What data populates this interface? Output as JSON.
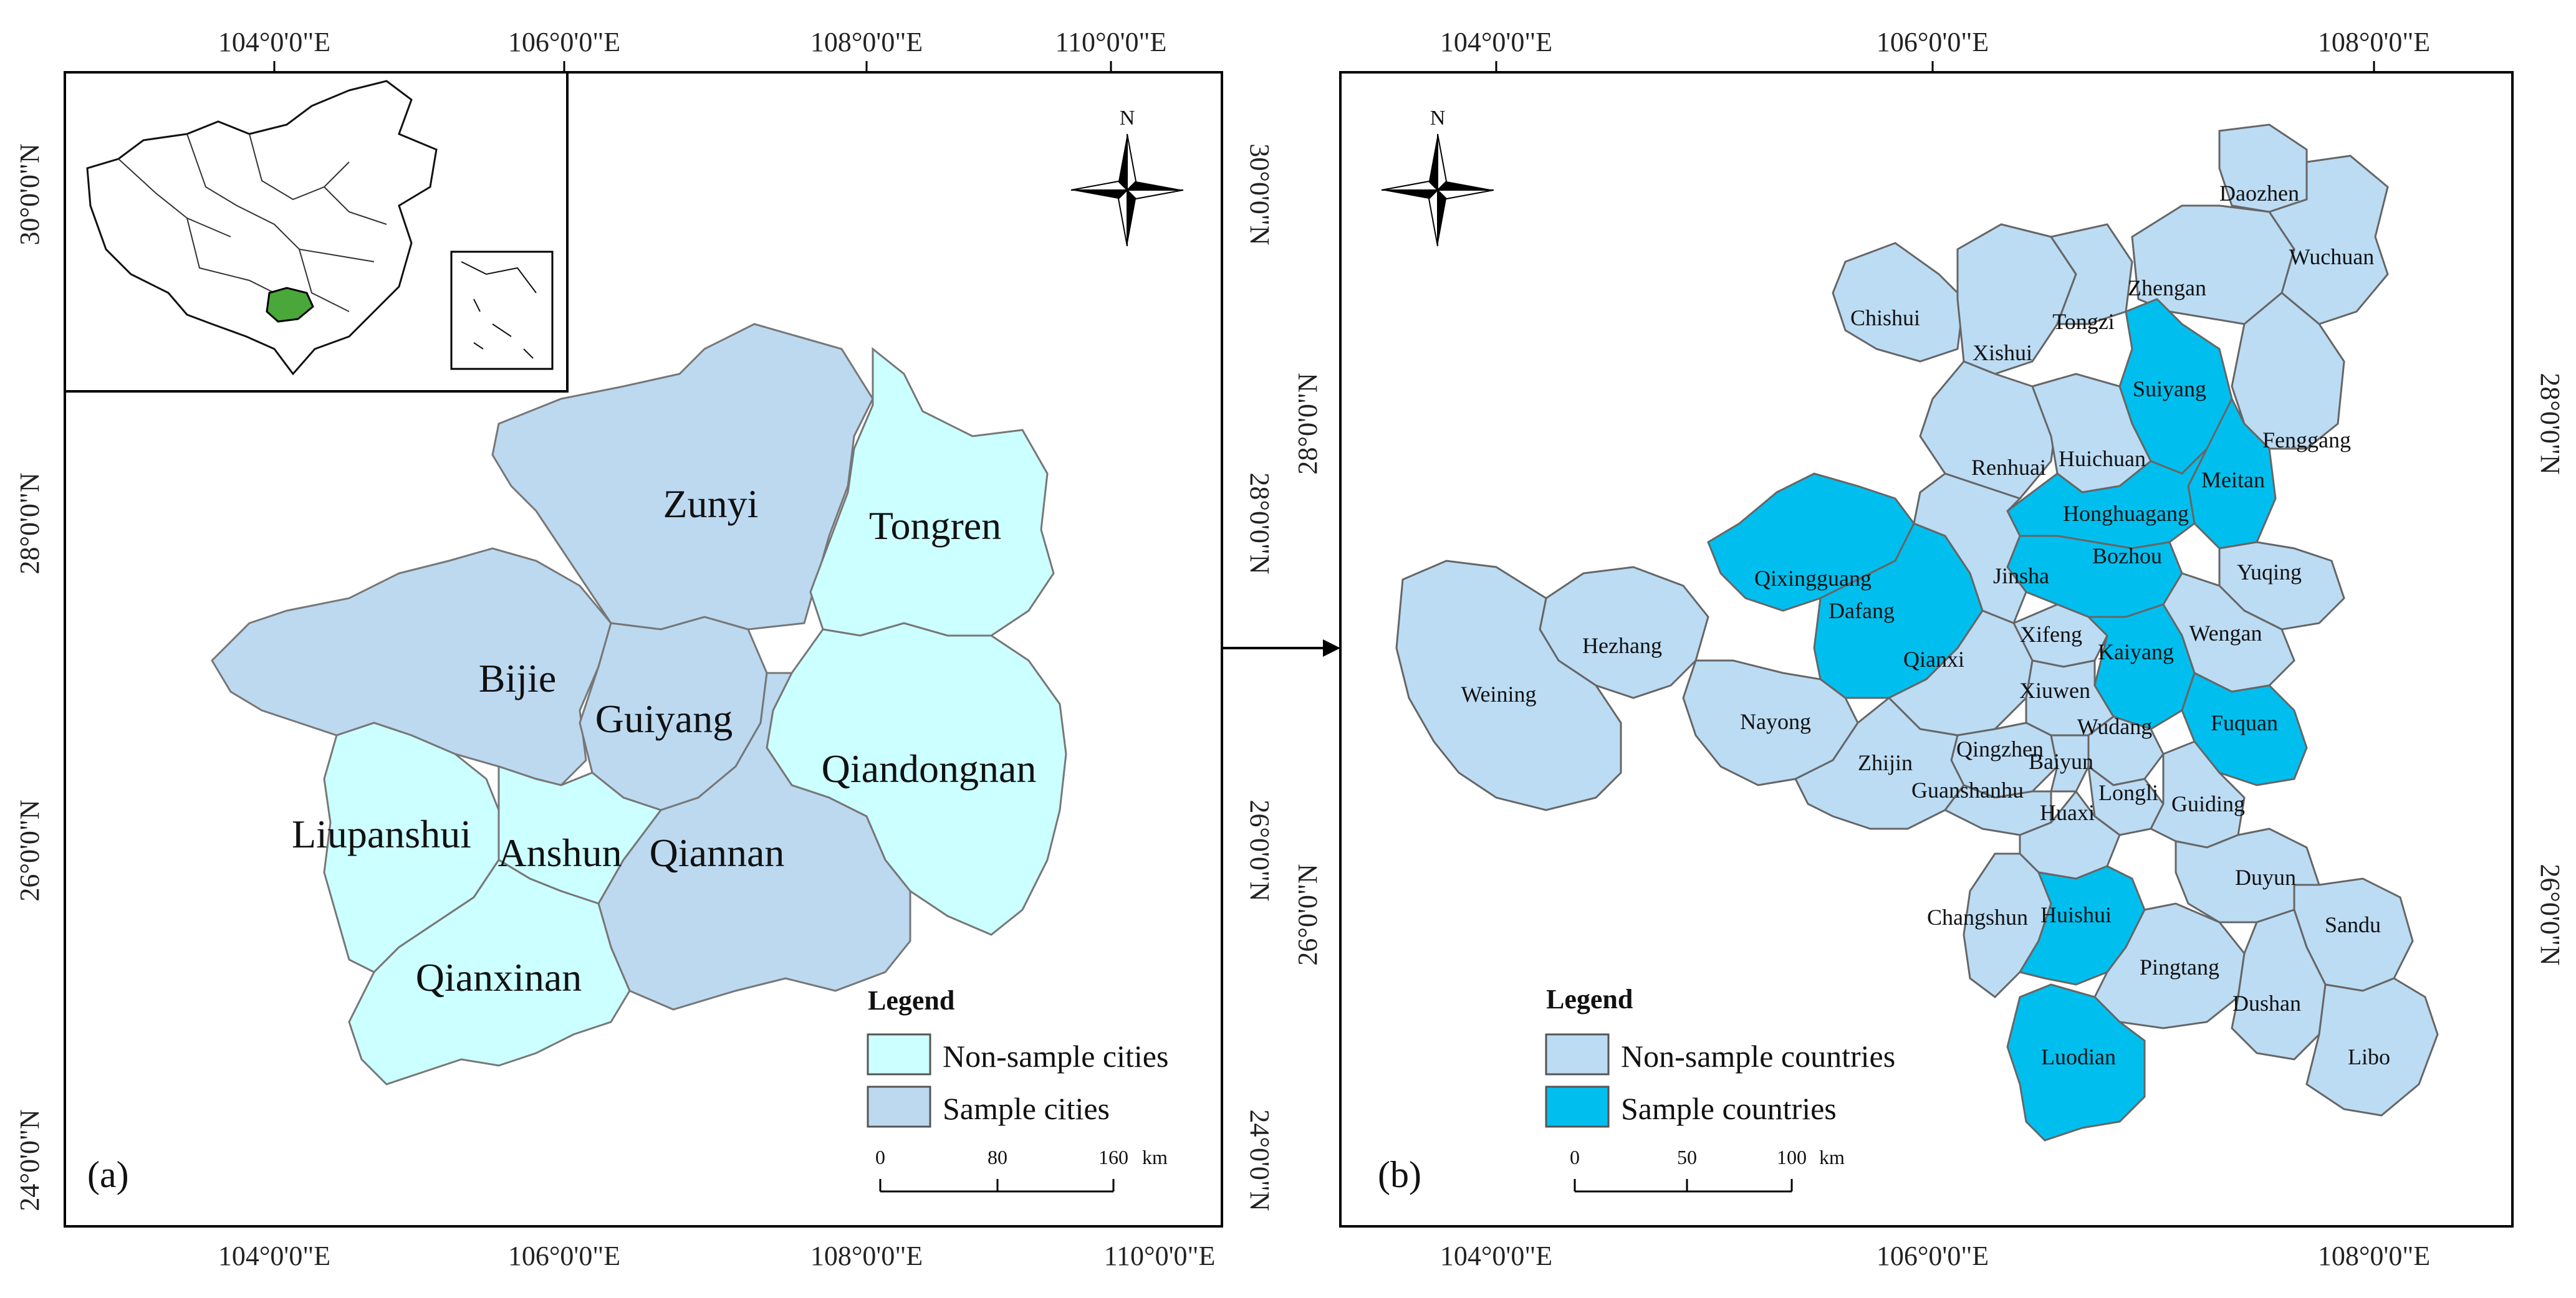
{
  "colors": {
    "non_sample": "#ccffff",
    "sample": "#bcd9f0",
    "sample_county": "#00bfee",
    "non_sample_county": "#bcdcf4",
    "inset_highlight": "#4aa83a",
    "border": "#777777"
  },
  "panel_a": {
    "tag": "(a)",
    "top_ticks": [
      "104°0'0\"E",
      "106°0'0\"E",
      "108°0'0\"E",
      "110°0'0\"E"
    ],
    "bottom_ticks": [
      "104°0'0\"E",
      "106°0'0\"E",
      "108°0'0\"E",
      "110°0'0\"E"
    ],
    "left_ticks": [
      "30°0'0\"N",
      "28°0'0\"N",
      "26°0'0\"N",
      "24°0'0\"N"
    ],
    "right_ticks": [
      "30°0'0\"N",
      "28°0'0\"N",
      "26°0'0\"N",
      "24°0'0\"N"
    ],
    "north": "N",
    "cities": {
      "zunyi": "Zunyi",
      "tongren": "Tongren",
      "bijie": "Bijie",
      "guiyang": "Guiyang",
      "qiandongnan": "Qiandongnan",
      "liupanshui": "Liupanshui",
      "anshun": "Anshun",
      "qiannan": "Qiannan",
      "qianxinan": "Qianxinan"
    },
    "legend": {
      "title": "Legend",
      "items": [
        "Non-sample cities",
        "Sample cities"
      ]
    },
    "scale": {
      "labels": [
        "0",
        "80",
        "160"
      ],
      "unit": "km"
    }
  },
  "panel_b": {
    "tag": "(b)",
    "top_ticks": [
      "104°0'0\"E",
      "106°0'0\"E",
      "108°0'0\"E"
    ],
    "bottom_ticks": [
      "104°0'0\"E",
      "106°0'0\"E",
      "108°0'0\"E"
    ],
    "left_ticks": [
      "28°0'0\"N",
      "26°0'0\"N"
    ],
    "right_ticks": [
      "28°0'0\"N",
      "26°0'0\"N"
    ],
    "north": "N",
    "counties": {
      "daozhen": "Daozhen",
      "wuchuan": "Wuchuan",
      "chishui": "Chishui",
      "tongzi": "Tongzi",
      "zhengan": "Zhengan",
      "xishui": "Xishui",
      "suiyang": "Suiyang",
      "fenggang": "Fenggang",
      "renhuai": "Renhuai",
      "huichuan": "Huichuan",
      "meitan": "Meitan",
      "honghuagang": "Honghuagang",
      "qixingguang": "Qixingguang",
      "bozhou": "Bozhou",
      "yuqing": "Yuqing",
      "dafang": "Dafang",
      "jinsha": "Jinsha",
      "hezhang": "Hezhang",
      "xifeng": "Xifeng",
      "wengan": "Wengan",
      "qianxi": "Qianxi",
      "kaiyang": "Kaiyang",
      "weining": "Weining",
      "xiuwen": "Xiuwen",
      "nayong": "Nayong",
      "wudang": "Wudang",
      "fuquan": "Fuquan",
      "qingzhen": "Qingzhen",
      "baiyun": "Baiyun",
      "zhijin": "Zhijin",
      "guanshanhu": "Guanshanhu",
      "longli": "Longli",
      "guiding": "Guiding",
      "huaxi": "Huaxi",
      "duyun": "Duyun",
      "changshun": "Changshun",
      "huishui": "Huishui",
      "sandu": "Sandu",
      "pingtang": "Pingtang",
      "dushan": "Dushan",
      "luodian": "Luodian",
      "libo": "Libo"
    },
    "legend": {
      "title": "Legend",
      "items": [
        "Non-sample countries",
        "Sample countries"
      ]
    },
    "scale": {
      "labels": [
        "0",
        "50",
        "100"
      ],
      "unit": "km"
    }
  }
}
